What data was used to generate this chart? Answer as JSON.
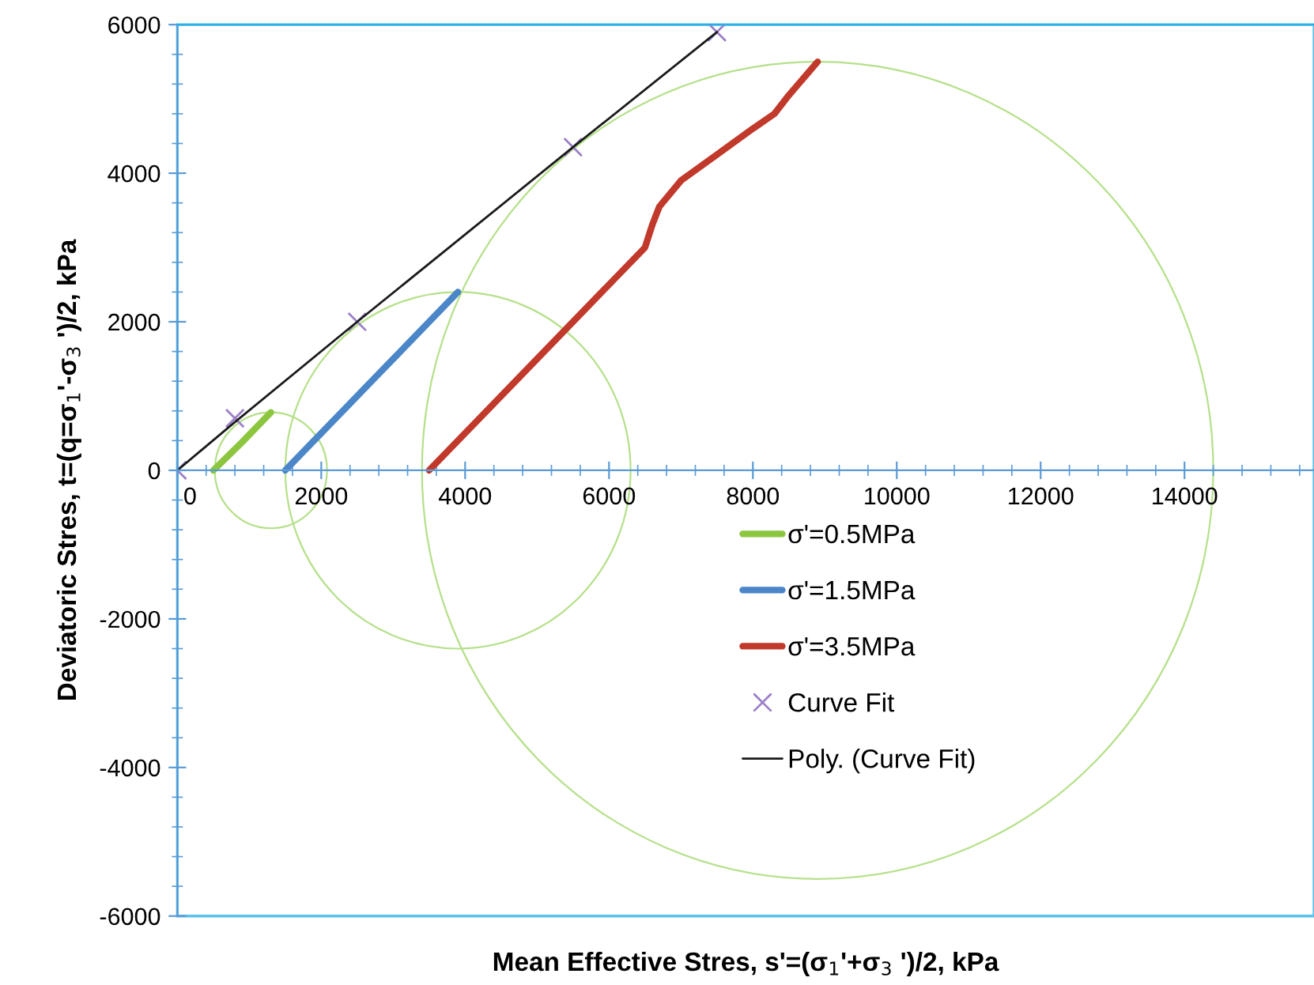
{
  "chart_data": {
    "type": "line",
    "xlabel": "Mean Effective Stres, s'=(σ$_{1}$'+σ$_{3}$ ')/2, kPa",
    "ylabel": "Deviatoric Stres, t=(q=σ$_{1}$'-σ$_{3}$ ')/2, kPa",
    "xlim": [
      0,
      15800
    ],
    "xticks": [
      0,
      2000,
      4000,
      6000,
      8000,
      10000,
      12000,
      14000
    ],
    "ylim": [
      -6000,
      6000
    ],
    "yticks": [
      -6000,
      -4000,
      -2000,
      0,
      2000,
      4000,
      6000
    ],
    "grid": false,
    "legend": "center",
    "series": [
      {
        "name": "σ'=0.5MPa",
        "color": "#8cc63f",
        "marker": "none",
        "x": [
          500,
          900,
          1300
        ],
        "values": [
          0,
          380,
          780
        ]
      },
      {
        "name": "σ'=1.5MPa",
        "color": "#4a86c8",
        "marker": "none",
        "x": [
          1500,
          2700,
          3900
        ],
        "values": [
          0,
          1200,
          2400
        ]
      },
      {
        "name": "σ'=3.5MPa",
        "color": "#c0392b",
        "marker": "none",
        "x": [
          3500,
          5000,
          6500,
          6600,
          6700,
          7000,
          7500,
          8000,
          8300,
          8500,
          8900
        ],
        "values": [
          0,
          1500,
          3000,
          3300,
          3550,
          3900,
          4250,
          4600,
          4800,
          5050,
          5500
        ]
      },
      {
        "name": "Curve Fit",
        "color": "#9b7fc8",
        "type": "scatter",
        "marker": "cross",
        "x": [
          0,
          800,
          2500,
          5500,
          7500
        ],
        "values": [
          0,
          700,
          2000,
          4350,
          5900
        ]
      },
      {
        "name": "Poly. (Curve Fit)",
        "color": "#1a1a1a",
        "marker": "none",
        "x": [
          0,
          800,
          2500,
          5500,
          7500
        ],
        "values": [
          0,
          650,
          2000,
          4350,
          5900
        ]
      }
    ]
  }
}
